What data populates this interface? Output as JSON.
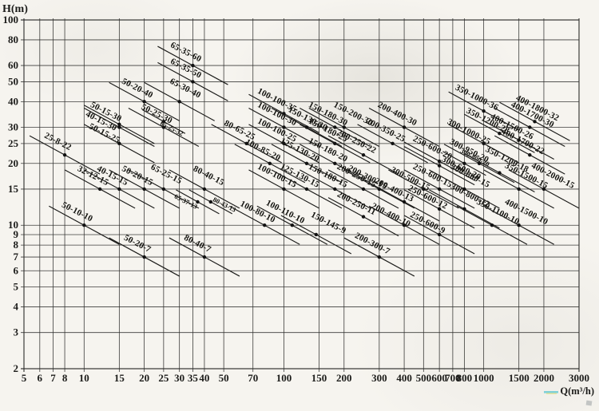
{
  "colors": {
    "paper": "#f6f4ef",
    "ink": "#1c1c1a",
    "highlighter": "#6ccbd4",
    "highlighter2": "#e4dc6e",
    "artifact": "#a9adaf"
  },
  "chart_data": {
    "type": "line",
    "title": "",
    "xlabel": "Q(m³/h)",
    "ylabel": "H(m)",
    "x_scale": "log",
    "y_scale": "log",
    "x_range": [
      5,
      3000
    ],
    "y_range": [
      2,
      100
    ],
    "grid": true,
    "legend": "none",
    "x_ticks": [
      5,
      6,
      7,
      8,
      10,
      15,
      20,
      25,
      30,
      35,
      40,
      50,
      70,
      100,
      150,
      200,
      300,
      400,
      500,
      600,
      700,
      800,
      1000,
      1500,
      2000,
      3000
    ],
    "y_ticks": [
      2,
      3,
      4,
      5,
      6,
      7,
      8,
      9,
      10,
      15,
      20,
      25,
      30,
      40,
      50,
      60,
      80,
      100
    ],
    "series_note": "each entry is a pump model curve segment; q=rated flow m3/h, h=rated head m at the marked duty point",
    "series": [
      {
        "model": "25-8-22",
        "q": 8,
        "h": 22
      },
      {
        "model": "50-10-10",
        "q": 10,
        "h": 10
      },
      {
        "model": "32-12-15",
        "q": 12,
        "h": 15
      },
      {
        "model": "40-15-15",
        "q": 15,
        "h": 15
      },
      {
        "model": "50-15-25",
        "q": 15,
        "h": 25,
        "dx": -20,
        "dy": -10
      },
      {
        "model": "40-15-30",
        "q": 15,
        "h": 30,
        "dx": -24,
        "dy": -5
      },
      {
        "model": "50-15-30",
        "q": 15,
        "h": 31,
        "dx": -18,
        "dy": -13
      },
      {
        "model": "50-20-7",
        "q": 20,
        "h": 7
      },
      {
        "model": "50-20-15",
        "q": 20,
        "h": 15
      },
      {
        "model": "50-20-40",
        "q": 20,
        "h": 40
      },
      {
        "model": "65-25-15",
        "q": 25,
        "h": 15,
        "dx": 2,
        "dy": -16
      },
      {
        "model": "50-25-30",
        "q": 25,
        "h": 30
      },
      {
        "model": "65-25-32",
        "q": 25,
        "h": 32,
        "small": true,
        "dx": 9,
        "dy": 11
      },
      {
        "model": "65-30-40",
        "q": 30,
        "h": 40,
        "dx": 6,
        "dy": -14
      },
      {
        "model": "65-35-50",
        "q": 35,
        "h": 50
      },
      {
        "model": "65-35-60",
        "q": 35,
        "h": 60
      },
      {
        "model": "65-37-13",
        "q": 37,
        "h": 13,
        "small": true,
        "dx": -16,
        "dy": 2
      },
      {
        "model": "80-40-7",
        "q": 40,
        "h": 7
      },
      {
        "model": "80-40-15",
        "q": 40,
        "h": 15,
        "dx": 4,
        "dy": -14
      },
      {
        "model": "80-43-13",
        "q": 43,
        "h": 13,
        "small": true,
        "dx": 16,
        "dy": 6
      },
      {
        "model": "80-65-25",
        "q": 65,
        "h": 25
      },
      {
        "model": "100-80-10",
        "q": 80,
        "h": 10
      },
      {
        "model": "100-85-20",
        "q": 85,
        "h": 20
      },
      {
        "model": "100-100-15",
        "q": 100,
        "h": 15
      },
      {
        "model": "100-100-25",
        "q": 100,
        "h": 25
      },
      {
        "model": "100-100-30",
        "q": 100,
        "h": 30
      },
      {
        "model": "100-100-35",
        "q": 100,
        "h": 35
      },
      {
        "model": "100-110-10",
        "q": 110,
        "h": 10
      },
      {
        "model": "125-130-15",
        "q": 130,
        "h": 15
      },
      {
        "model": "125-130-20",
        "q": 130,
        "h": 20
      },
      {
        "model": "150-130-30",
        "q": 130,
        "h": 30,
        "dx": 0,
        "dy": -8
      },
      {
        "model": "150-145-9",
        "q": 145,
        "h": 9,
        "dx": 14,
        "dy": -12
      },
      {
        "model": "150-180-15",
        "q": 180,
        "h": 15
      },
      {
        "model": "150-180-20",
        "q": 180,
        "h": 20
      },
      {
        "model": "150-180-25",
        "q": 180,
        "h": 25
      },
      {
        "model": "150-180-30",
        "q": 180,
        "h": 30
      },
      {
        "model": "150-200-30",
        "q": 200,
        "h": 30,
        "dx": 10,
        "dy": -14
      },
      {
        "model": "200-250-11",
        "q": 250,
        "h": 11
      },
      {
        "model": "200-250-15",
        "q": 250,
        "h": 15
      },
      {
        "model": "200-250-22",
        "q": 250,
        "h": 22
      },
      {
        "model": "200-300-7",
        "q": 300,
        "h": 7
      },
      {
        "model": "200-300-15",
        "q": 300,
        "h": 15,
        "dx": -16,
        "dy": -12
      },
      {
        "model": "200-350-25",
        "q": 350,
        "h": 25
      },
      {
        "model": "200-400-10",
        "q": 400,
        "h": 10,
        "dx": -18,
        "dy": -10
      },
      {
        "model": "200-400-13",
        "q": 400,
        "h": 13,
        "dx": -14,
        "dy": -12
      },
      {
        "model": "200-400-30",
        "q": 400,
        "h": 30
      },
      {
        "model": "300-500-15",
        "q": 500,
        "h": 15,
        "dx": -18,
        "dy": -10
      },
      {
        "model": "250-600-9",
        "q": 600,
        "h": 9,
        "dx": -16,
        "dy": -12
      },
      {
        "model": "250-600-12",
        "q": 600,
        "h": 12,
        "dx": -16,
        "dy": -12
      },
      {
        "model": "250-600-15",
        "q": 600,
        "h": 15
      },
      {
        "model": "250-600-20",
        "q": 600,
        "h": 20.5
      },
      {
        "model": "300-600-20",
        "q": 600,
        "h": 19.5,
        "dx": 26,
        "dy": 6
      },
      {
        "model": "300-800-12",
        "q": 800,
        "h": 12,
        "dx": 6,
        "dy": -14
      },
      {
        "model": "300-800-15",
        "q": 800,
        "h": 15,
        "dx": 6,
        "dy": -14
      },
      {
        "model": "300-800-20",
        "q": 800,
        "h": 20,
        "small": true,
        "dx": 12,
        "dy": -5
      },
      {
        "model": "300-950-20",
        "q": 950,
        "h": 20,
        "dx": -14,
        "dy": -13
      },
      {
        "model": "300-1000-25",
        "q": 1000,
        "h": 25,
        "dx": -20,
        "dy": -12
      },
      {
        "model": "350-1000-36",
        "q": 1000,
        "h": 36
      },
      {
        "model": "350-1100-10",
        "q": 1100,
        "h": 10,
        "dx": 6,
        "dy": -14
      },
      {
        "model": "350-1200-18",
        "q": 1200,
        "h": 18,
        "dx": 8,
        "dy": -14
      },
      {
        "model": "350-1200-28",
        "q": 1200,
        "h": 28,
        "dx": -16,
        "dy": -13
      },
      {
        "model": "350-1500-15",
        "q": 1500,
        "h": 15,
        "dx": 8,
        "dy": -14
      },
      {
        "model": "400-1500-10",
        "q": 1500,
        "h": 10,
        "dx": 8,
        "dy": -14
      },
      {
        "model": "400-1500-26",
        "q": 1500,
        "h": 26
      },
      {
        "model": "400-1700-22",
        "q": 1700,
        "h": 22
      },
      {
        "model": "400-1700-30",
        "q": 1700,
        "h": 30,
        "dx": 2,
        "dy": -13
      },
      {
        "model": "400-1800-32",
        "q": 1800,
        "h": 32,
        "dx": 2,
        "dy": -14
      },
      {
        "model": "400-2000-15",
        "q": 2000,
        "h": 15,
        "dx": 10,
        "dy": -14
      }
    ]
  }
}
